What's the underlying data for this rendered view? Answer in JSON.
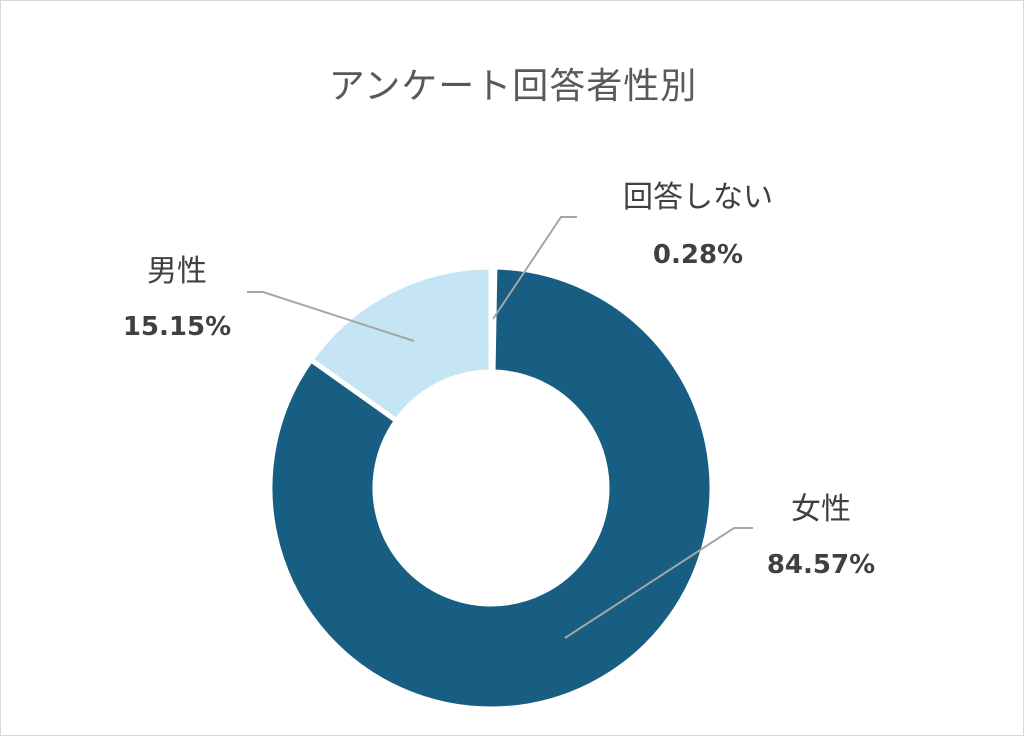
{
  "chart_data": {
    "type": "pie",
    "title": "アンケート回答者性別",
    "donut": true,
    "slices": [
      {
        "label": "回答しない",
        "value": 0.28,
        "value_label": "0.28%",
        "color": "#1a4f6e"
      },
      {
        "label": "女性",
        "value": 84.57,
        "value_label": "84.57%",
        "color": "#175e82"
      },
      {
        "label": "男性",
        "value": 15.15,
        "value_label": "15.15%",
        "color": "#c5e4f4"
      }
    ],
    "legend": "none",
    "leader_line_color": "#a6a6a6"
  }
}
